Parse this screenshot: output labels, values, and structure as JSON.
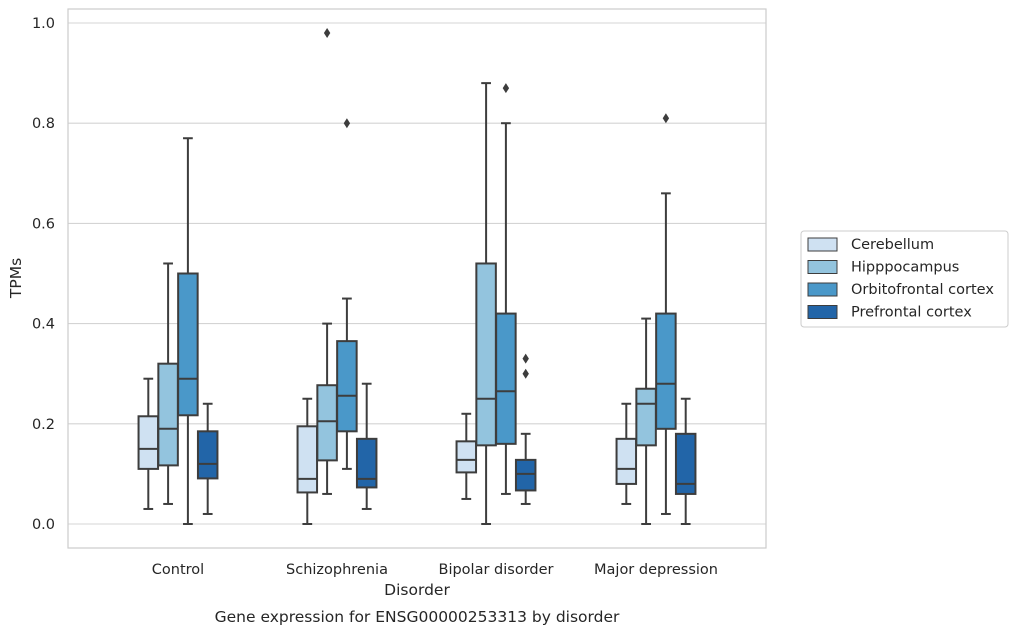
{
  "chart_data": {
    "type": "box",
    "title": "",
    "caption": "Gene expression for ENSG00000253313 by disorder",
    "xlabel": "Disorder",
    "ylabel": "TPMs",
    "ylim": [
      -0.045,
      1.03
    ],
    "yticks": [
      0.0,
      0.2,
      0.4,
      0.6,
      0.8,
      1.0
    ],
    "ytick_labels": [
      "0.0",
      "0.2",
      "0.4",
      "0.6",
      "0.8",
      "1.0"
    ],
    "grid": "horizontal",
    "legend_position": "outside-right",
    "categories": [
      "Control",
      "Schizophrenia",
      "Bipolar disorder",
      "Major depression"
    ],
    "series": [
      {
        "name": "Cerebellum",
        "color": "#cfe1f2",
        "boxes": [
          {
            "whislo": 0.03,
            "q1": 0.11,
            "med": 0.15,
            "q3": 0.215,
            "whishi": 0.29,
            "fliers": []
          },
          {
            "whislo": 0.0,
            "q1": 0.063,
            "med": 0.09,
            "q3": 0.195,
            "whishi": 0.25,
            "fliers": []
          },
          {
            "whislo": 0.05,
            "q1": 0.103,
            "med": 0.128,
            "q3": 0.165,
            "whishi": 0.22,
            "fliers": []
          },
          {
            "whislo": 0.04,
            "q1": 0.08,
            "med": 0.11,
            "q3": 0.17,
            "whishi": 0.24,
            "fliers": []
          }
        ]
      },
      {
        "name": "Hipppocampus",
        "color": "#93c4de",
        "boxes": [
          {
            "whislo": 0.04,
            "q1": 0.117,
            "med": 0.19,
            "q3": 0.32,
            "whishi": 0.52,
            "fliers": []
          },
          {
            "whislo": 0.06,
            "q1": 0.127,
            "med": 0.205,
            "q3": 0.277,
            "whishi": 0.4,
            "fliers": [
              0.98
            ]
          },
          {
            "whislo": 0.0,
            "q1": 0.157,
            "med": 0.25,
            "q3": 0.52,
            "whishi": 0.88,
            "fliers": []
          },
          {
            "whislo": 0.0,
            "q1": 0.157,
            "med": 0.24,
            "q3": 0.27,
            "whishi": 0.41,
            "fliers": []
          }
        ]
      },
      {
        "name": "Orbitofrontal cortex",
        "color": "#4a98c9",
        "boxes": [
          {
            "whislo": 0.0,
            "q1": 0.217,
            "med": 0.29,
            "q3": 0.5,
            "whishi": 0.77,
            "fliers": []
          },
          {
            "whislo": 0.11,
            "q1": 0.185,
            "med": 0.256,
            "q3": 0.365,
            "whishi": 0.45,
            "fliers": [
              0.8
            ]
          },
          {
            "whislo": 0.06,
            "q1": 0.16,
            "med": 0.265,
            "q3": 0.42,
            "whishi": 0.8,
            "fliers": [
              0.87
            ]
          },
          {
            "whislo": 0.02,
            "q1": 0.19,
            "med": 0.28,
            "q3": 0.42,
            "whishi": 0.66,
            "fliers": [
              0.81
            ]
          }
        ]
      },
      {
        "name": "Prefrontal cortex",
        "color": "#2265a8",
        "boxes": [
          {
            "whislo": 0.02,
            "q1": 0.091,
            "med": 0.12,
            "q3": 0.185,
            "whishi": 0.24,
            "fliers": []
          },
          {
            "whislo": 0.03,
            "q1": 0.073,
            "med": 0.09,
            "q3": 0.17,
            "whishi": 0.28,
            "fliers": []
          },
          {
            "whislo": 0.04,
            "q1": 0.067,
            "med": 0.1,
            "q3": 0.128,
            "whishi": 0.18,
            "fliers": [
              0.3,
              0.33
            ]
          },
          {
            "whislo": 0.0,
            "q1": 0.06,
            "med": 0.08,
            "q3": 0.18,
            "whishi": 0.25,
            "fliers": []
          }
        ]
      }
    ]
  }
}
